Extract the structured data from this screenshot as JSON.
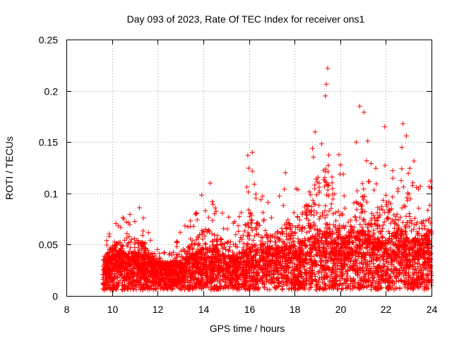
{
  "chart_data": {
    "type": "scatter",
    "title": "Day 093 of 2023, Rate Of TEC Index for receiver ons1",
    "xlabel": "GPS time / hours",
    "ylabel": "ROTI / TECUs",
    "xlim": [
      8,
      24
    ],
    "ylim": [
      0,
      0.25
    ],
    "x_ticks": [
      "8",
      "10",
      "12",
      "14",
      "16",
      "18",
      "20",
      "22",
      "24"
    ],
    "y_ticks": [
      "0",
      "0.05",
      "0.1",
      "0.15",
      "0.2",
      "0.25"
    ],
    "grid": true,
    "marker": "+",
    "series_color": "#ff0000",
    "profile_hours": [
      9.6,
      10.0,
      10.5,
      11.0,
      11.5,
      12.0,
      12.5,
      13.0,
      13.5,
      14.0,
      14.5,
      15.0,
      15.5,
      16.0,
      16.5,
      17.0,
      17.5,
      18.0,
      18.5,
      19.0,
      19.5,
      20.0,
      20.5,
      21.0,
      21.5,
      22.0,
      22.5,
      23.0,
      23.5,
      24.0
    ],
    "profile_typical_roti": [
      0.02,
      0.025,
      0.028,
      0.027,
      0.025,
      0.022,
      0.02,
      0.022,
      0.025,
      0.03,
      0.03,
      0.025,
      0.025,
      0.03,
      0.032,
      0.03,
      0.03,
      0.032,
      0.035,
      0.04,
      0.04,
      0.035,
      0.04,
      0.04,
      0.035,
      0.035,
      0.04,
      0.035,
      0.035,
      0.04
    ],
    "profile_upper_envelope_roti": [
      0.05,
      0.075,
      0.08,
      0.085,
      0.075,
      0.05,
      0.045,
      0.065,
      0.08,
      0.11,
      0.09,
      0.085,
      0.075,
      0.14,
      0.11,
      0.09,
      0.11,
      0.12,
      0.145,
      0.195,
      0.22,
      0.13,
      0.11,
      0.185,
      0.12,
      0.165,
      0.12,
      0.17,
      0.11,
      0.11
    ],
    "peak_points": [
      {
        "x": 19.45,
        "y": 0.222
      },
      {
        "x": 19.35,
        "y": 0.195
      },
      {
        "x": 20.85,
        "y": 0.185
      },
      {
        "x": 22.75,
        "y": 0.168
      },
      {
        "x": 21.95,
        "y": 0.165
      },
      {
        "x": 18.9,
        "y": 0.16
      },
      {
        "x": 20.7,
        "y": 0.15
      },
      {
        "x": 22.7,
        "y": 0.145
      },
      {
        "x": 15.95,
        "y": 0.137
      },
      {
        "x": 16.15,
        "y": 0.14
      },
      {
        "x": 14.3,
        "y": 0.11
      },
      {
        "x": 23.95,
        "y": 0.112
      },
      {
        "x": 17.6,
        "y": 0.12
      },
      {
        "x": 11.2,
        "y": 0.086
      }
    ],
    "point_count_estimate": 5200
  }
}
